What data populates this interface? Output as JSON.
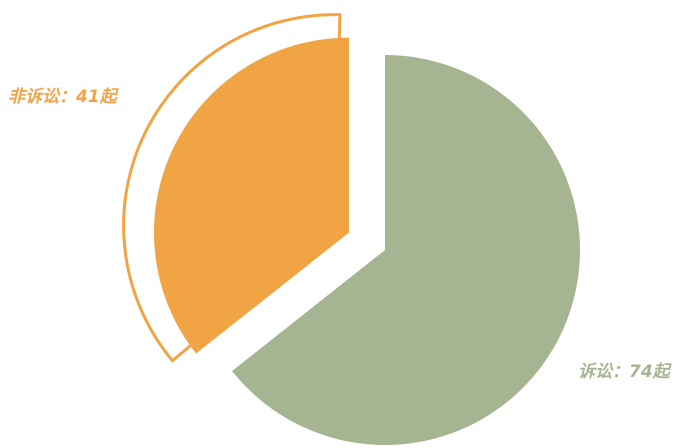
{
  "chart_data": {
    "type": "pie",
    "values": [
      41,
      74
    ],
    "value_labels": [
      "非诉讼：41起",
      "诉讼：74起"
    ],
    "colors": [
      "#f0a443",
      "#a5b591"
    ]
  }
}
